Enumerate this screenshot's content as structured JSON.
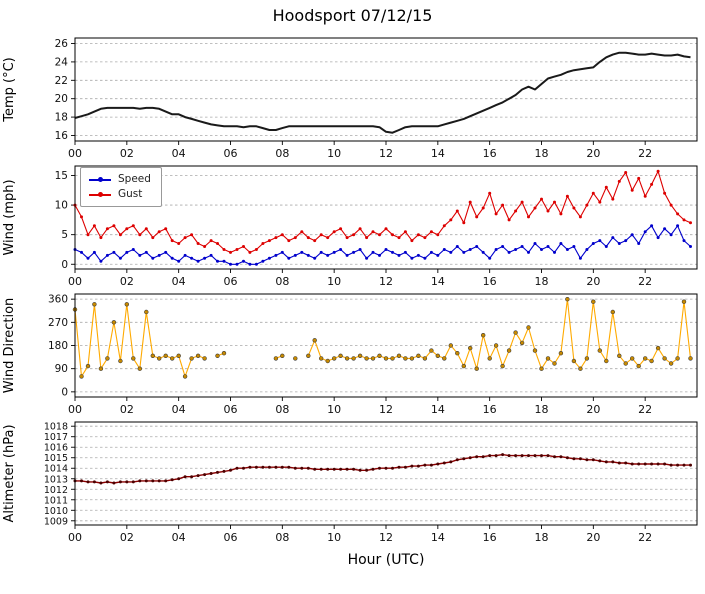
{
  "title": "Hoodsport 07/12/15",
  "xlabel": "Hour (UTC)",
  "x_axis": {
    "range": [
      0,
      24
    ],
    "tick_values": [
      0,
      2,
      4,
      6,
      8,
      10,
      12,
      14,
      16,
      18,
      20,
      22
    ],
    "tick_labels": [
      "00",
      "02",
      "04",
      "06",
      "08",
      "10",
      "12",
      "14",
      "16",
      "18",
      "20",
      "22"
    ],
    "start": 0,
    "step": 0.25
  },
  "colors": {
    "grid": "#aaaaaa",
    "axis": "#000000",
    "tick_text": "#111111"
  },
  "chart_data": [
    {
      "type": "line",
      "ylabel": "Temp (°C)",
      "yticks": [
        16,
        18,
        20,
        22,
        24,
        26
      ],
      "ylim": [
        15.4,
        26.6
      ],
      "series": [
        {
          "color": "#1a1a1a",
          "line_width": 2.0,
          "marker": false,
          "values": [
            17.9,
            18.1,
            18.3,
            18.6,
            18.9,
            19.0,
            19.0,
            19.0,
            19.0,
            19.0,
            18.9,
            19.0,
            19.0,
            18.9,
            18.6,
            18.3,
            18.3,
            18.0,
            17.8,
            17.6,
            17.4,
            17.2,
            17.1,
            17.0,
            17.0,
            17.0,
            16.9,
            17.0,
            17.0,
            16.8,
            16.6,
            16.6,
            16.8,
            17.0,
            17.0,
            17.0,
            17.0,
            17.0,
            17.0,
            17.0,
            17.0,
            17.0,
            17.0,
            17.0,
            17.0,
            17.0,
            17.0,
            16.9,
            16.4,
            16.3,
            16.6,
            16.9,
            17.0,
            17.0,
            17.0,
            17.0,
            17.0,
            17.2,
            17.4,
            17.6,
            17.8,
            18.1,
            18.4,
            18.7,
            19.0,
            19.3,
            19.6,
            20.0,
            20.4,
            21.0,
            21.3,
            21.0,
            21.6,
            22.2,
            22.4,
            22.6,
            22.9,
            23.1,
            23.2,
            23.3,
            23.4,
            24.0,
            24.5,
            24.8,
            25.0,
            25.0,
            24.9,
            24.8,
            24.8,
            24.9,
            24.8,
            24.7,
            24.7,
            24.8,
            24.6,
            24.5
          ]
        }
      ]
    },
    {
      "type": "line",
      "ylabel": "Wind (mph)",
      "yticks": [
        0,
        5,
        10,
        15
      ],
      "ylim": [
        -0.8,
        16.6
      ],
      "legend_position": "upper-left",
      "series": [
        {
          "name": "Speed",
          "color": "#0000cc",
          "line_width": 1.1,
          "marker": true,
          "marker_fill": "#0000cc",
          "values": [
            2.5,
            2.0,
            1.0,
            2.0,
            0.5,
            1.5,
            2.0,
            1.0,
            2.0,
            2.5,
            1.5,
            2.0,
            1.0,
            1.5,
            2.0,
            1.0,
            0.5,
            1.5,
            1.0,
            0.5,
            1.0,
            1.5,
            0.5,
            0.5,
            0.0,
            0.0,
            0.5,
            0.0,
            0.0,
            0.5,
            1.0,
            1.5,
            2.0,
            1.0,
            1.5,
            2.0,
            1.5,
            1.0,
            2.0,
            1.5,
            2.0,
            2.5,
            1.5,
            2.0,
            2.5,
            1.0,
            2.0,
            1.5,
            2.5,
            2.0,
            1.5,
            2.0,
            1.0,
            1.5,
            1.0,
            2.0,
            1.5,
            2.5,
            2.0,
            3.0,
            2.0,
            2.5,
            3.0,
            2.0,
            1.0,
            2.5,
            3.0,
            2.0,
            2.5,
            3.0,
            2.0,
            3.5,
            2.5,
            3.0,
            2.0,
            3.5,
            2.5,
            3.0,
            1.0,
            2.5,
            3.5,
            4.0,
            3.0,
            4.5,
            3.5,
            4.0,
            5.0,
            3.5,
            5.5,
            6.5,
            4.5,
            6.0,
            5.0,
            6.5,
            4.0,
            3.0
          ]
        },
        {
          "name": "Gust",
          "color": "#dd0000",
          "line_width": 1.1,
          "marker": true,
          "marker_fill": "#dd0000",
          "values": [
            10.0,
            8.0,
            5.0,
            6.5,
            4.5,
            6.0,
            6.5,
            5.0,
            6.0,
            6.5,
            5.0,
            6.0,
            4.5,
            5.5,
            6.0,
            4.0,
            3.5,
            4.5,
            5.0,
            3.5,
            3.0,
            4.0,
            3.5,
            2.5,
            2.0,
            2.5,
            3.0,
            2.0,
            2.5,
            3.5,
            4.0,
            4.5,
            5.0,
            4.0,
            4.5,
            5.5,
            4.5,
            4.0,
            5.0,
            4.5,
            5.5,
            6.0,
            4.5,
            5.0,
            6.0,
            4.5,
            5.5,
            5.0,
            6.0,
            5.0,
            4.5,
            5.5,
            4.0,
            5.0,
            4.5,
            5.5,
            5.0,
            6.5,
            7.5,
            9.0,
            7.0,
            10.5,
            8.0,
            9.5,
            12.0,
            8.5,
            10.0,
            7.5,
            9.0,
            10.5,
            8.0,
            9.5,
            11.0,
            9.0,
            10.5,
            8.5,
            11.5,
            9.5,
            8.0,
            10.0,
            12.0,
            10.5,
            13.0,
            11.0,
            14.0,
            15.5,
            12.5,
            14.5,
            11.5,
            13.5,
            15.7,
            12.0,
            10.0,
            8.5,
            7.5,
            7.0
          ]
        }
      ]
    },
    {
      "type": "line",
      "ylabel": "Wind Direction",
      "yticks": [
        0,
        90,
        180,
        270,
        360
      ],
      "ylim": [
        -20,
        380
      ],
      "series": [
        {
          "color": "#ffaa00",
          "line_width": 1.1,
          "marker": true,
          "marker_fill": "#c88a00",
          "marker_stroke": "#3a3a3a",
          "values": [
            320,
            60,
            100,
            340,
            90,
            130,
            270,
            120,
            340,
            130,
            90,
            310,
            140,
            130,
            140,
            130,
            140,
            60,
            130,
            140,
            130,
            null,
            140,
            150,
            null,
            null,
            null,
            null,
            null,
            null,
            null,
            130,
            140,
            null,
            130,
            null,
            140,
            200,
            130,
            120,
            130,
            140,
            130,
            130,
            140,
            130,
            130,
            140,
            130,
            130,
            140,
            130,
            130,
            140,
            130,
            160,
            140,
            130,
            180,
            150,
            100,
            170,
            90,
            220,
            130,
            180,
            100,
            160,
            230,
            190,
            250,
            160,
            90,
            130,
            110,
            150,
            360,
            120,
            90,
            130,
            350,
            160,
            120,
            310,
            140,
            110,
            130,
            100,
            130,
            120,
            170,
            130,
            110,
            130,
            350,
            130
          ]
        }
      ]
    },
    {
      "type": "line",
      "ylabel": "Altimeter (hPa)",
      "yticks": [
        1009,
        1010,
        1011,
        1012,
        1013,
        1014,
        1015,
        1016,
        1017,
        1018
      ],
      "ylim": [
        1008.6,
        1018.4
      ],
      "series": [
        {
          "color": "#8b0000",
          "line_width": 1.4,
          "marker": true,
          "marker_fill": "#4d0000",
          "values": [
            1012.8,
            1012.8,
            1012.7,
            1012.7,
            1012.6,
            1012.7,
            1012.6,
            1012.7,
            1012.7,
            1012.7,
            1012.8,
            1012.8,
            1012.8,
            1012.8,
            1012.8,
            1012.9,
            1013.0,
            1013.2,
            1013.2,
            1013.3,
            1013.4,
            1013.5,
            1013.6,
            1013.7,
            1013.8,
            1014.0,
            1014.0,
            1014.1,
            1014.1,
            1014.1,
            1014.1,
            1014.1,
            1014.1,
            1014.1,
            1014.0,
            1014.0,
            1014.0,
            1013.9,
            1013.9,
            1013.9,
            1013.9,
            1013.9,
            1013.9,
            1013.9,
            1013.8,
            1013.8,
            1013.9,
            1014.0,
            1014.0,
            1014.0,
            1014.1,
            1014.1,
            1014.2,
            1014.2,
            1014.3,
            1014.3,
            1014.4,
            1014.5,
            1014.6,
            1014.8,
            1014.9,
            1015.0,
            1015.1,
            1015.1,
            1015.2,
            1015.2,
            1015.3,
            1015.2,
            1015.2,
            1015.2,
            1015.2,
            1015.2,
            1015.2,
            1015.2,
            1015.1,
            1015.1,
            1015.0,
            1014.9,
            1014.9,
            1014.8,
            1014.8,
            1014.7,
            1014.6,
            1014.6,
            1014.5,
            1014.5,
            1014.4,
            1014.4,
            1014.4,
            1014.4,
            1014.4,
            1014.4,
            1014.3,
            1014.3,
            1014.3,
            1014.3
          ]
        }
      ]
    }
  ]
}
